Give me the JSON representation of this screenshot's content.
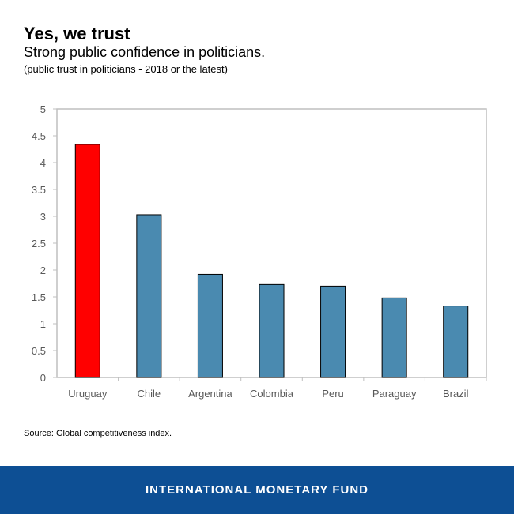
{
  "header": {
    "title": "Yes, we trust",
    "subtitle": "Strong public confidence in politicians.",
    "note": "(public trust in politicians - 2018 or the latest)"
  },
  "chart_data": {
    "type": "bar",
    "categories": [
      "Uruguay",
      "Chile",
      "Argentina",
      "Colombia",
      "Peru",
      "Paraguay",
      "Brazil"
    ],
    "values": [
      4.34,
      3.03,
      1.92,
      1.73,
      1.7,
      1.48,
      1.33
    ],
    "colors": [
      "#ff0000",
      "#4a8ab0",
      "#4a8ab0",
      "#4a8ab0",
      "#4a8ab0",
      "#4a8ab0",
      "#4a8ab0"
    ],
    "ylim": [
      0,
      5
    ],
    "yticks": [
      "0",
      "0.5",
      "1",
      "1.5",
      "2",
      "2.5",
      "3",
      "3.5",
      "4",
      "4.5",
      "5"
    ],
    "grid": false,
    "legend": "none"
  },
  "source": "Source: Global competitiveness index.",
  "footer": {
    "org": "INTERNATIONAL MONETARY FUND"
  }
}
